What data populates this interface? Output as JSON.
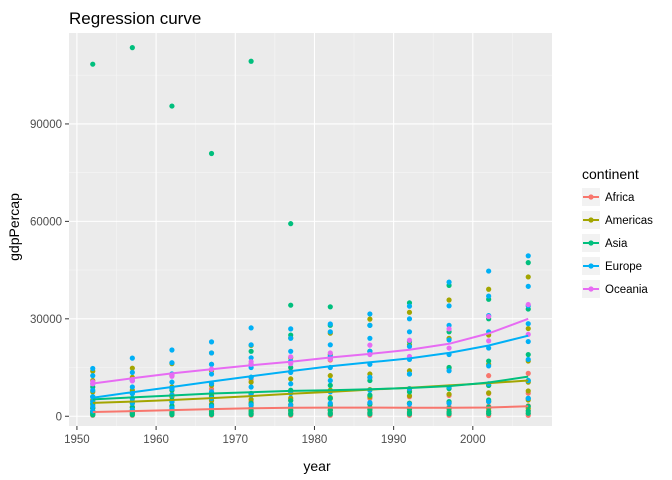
{
  "chart_data": {
    "type": "scatter",
    "title": "Regression curve",
    "xlabel": "year",
    "ylabel": "gdpPercap",
    "xlim": [
      1949,
      2010
    ],
    "ylim": [
      -3000,
      118000
    ],
    "xticks": [
      1950,
      1960,
      1970,
      1980,
      1990,
      2000
    ],
    "xtick_labels": [
      "1950",
      "1960",
      "1970",
      "1980",
      "1990",
      "2000"
    ],
    "yticks": [
      0,
      30000,
      60000,
      90000
    ],
    "ytick_labels": [
      "0",
      "30000",
      "60000",
      "90000"
    ],
    "grid": true,
    "legend": {
      "title": "continent",
      "placement": "right"
    },
    "years": [
      1952,
      1957,
      1962,
      1967,
      1972,
      1977,
      1982,
      1987,
      1992,
      1997,
      2002,
      2007
    ],
    "series": [
      {
        "name": "Africa",
        "color": "#F8766D",
        "points": [
          {
            "x": 1952,
            "y": [
              300,
              600,
              1000,
              1500,
              2500,
              4700
            ]
          },
          {
            "x": 1957,
            "y": [
              300,
              700,
              1100,
              1800,
              2900,
              5500
            ]
          },
          {
            "x": 1962,
            "y": [
              350,
              800,
              1200,
              2000,
              3200,
              6700
            ]
          },
          {
            "x": 1967,
            "y": [
              350,
              850,
              1400,
              2300,
              3800,
              8400
            ]
          },
          {
            "x": 1972,
            "y": [
              330,
              900,
              1500,
              2500,
              4500,
              11300
            ]
          },
          {
            "x": 1977,
            "y": [
              300,
              900,
              1600,
              2700,
              5000,
              13900
            ]
          },
          {
            "x": 1982,
            "y": [
              300,
              900,
              1700,
              2900,
              5400,
              17300
            ]
          },
          {
            "x": 1987,
            "y": [
              300,
              850,
              1600,
              2800,
              5500,
              11900
            ]
          },
          {
            "x": 1992,
            "y": [
              280,
              800,
              1500,
              2700,
              6000,
              7900
            ]
          },
          {
            "x": 1997,
            "y": [
              310,
              850,
              1600,
              2900,
              6400,
              14700
            ]
          },
          {
            "x": 2002,
            "y": [
              240,
              880,
              1700,
              3100,
              7000,
              12500
            ]
          },
          {
            "x": 2007,
            "y": [
              280,
              900,
              1800,
              3200,
              7100,
              13200
            ]
          }
        ],
        "fit": [
          1300,
          1600,
          1900,
          2200,
          2450,
          2600,
          2650,
          2650,
          2600,
          2600,
          2700,
          3100
        ]
      },
      {
        "name": "Americas",
        "color": "#A3A500",
        "points": [
          {
            "x": 1952,
            "y": [
              1400,
              2500,
              3500,
              5000,
              7500,
              11000,
              13900
            ]
          },
          {
            "x": 1957,
            "y": [
              1500,
              2700,
              4000,
              5500,
              8000,
              12000,
              14800
            ]
          },
          {
            "x": 1962,
            "y": [
              1700,
              3000,
              4400,
              6000,
              9000,
              12500,
              16200
            ]
          },
          {
            "x": 1967,
            "y": [
              1800,
              3200,
              4800,
              6500,
              9500,
              14000,
              19500
            ]
          },
          {
            "x": 1972,
            "y": [
              1900,
              3400,
              5200,
              7000,
              10500,
              16000,
              21800
            ]
          },
          {
            "x": 1977,
            "y": [
              2000,
              3600,
              5600,
              7500,
              11500,
              18000,
              24100
            ]
          },
          {
            "x": 1982,
            "y": [
              2000,
              3700,
              5800,
              8000,
              12500,
              19000,
              25600
            ]
          },
          {
            "x": 1987,
            "y": [
              2100,
              3800,
              6000,
              8200,
              13000,
              20000,
              29900
            ]
          },
          {
            "x": 1992,
            "y": [
              2200,
              4000,
              6300,
              8500,
              14000,
              22000,
              32000
            ]
          },
          {
            "x": 1997,
            "y": [
              2300,
              4200,
              6800,
              9000,
              15000,
              24000,
              35800
            ]
          },
          {
            "x": 2002,
            "y": [
              2400,
              4500,
              7200,
              9500,
              16000,
              25000,
              39100
            ]
          },
          {
            "x": 2007,
            "y": [
              2500,
              5000,
              7800,
              10500,
              17000,
              27000,
              42900
            ]
          }
        ],
        "fit": [
          4100,
          4500,
          5000,
          5600,
          6200,
          6900,
          7500,
          8200,
          8800,
          9500,
          10200,
          11000
        ]
      },
      {
        "name": "Asia",
        "color": "#00BF7D",
        "points": [
          {
            "x": 1952,
            "y": [
              400,
              700,
              1000,
              1500,
              2500,
              4000,
              6000,
              9000,
              108400
            ]
          },
          {
            "x": 1957,
            "y": [
              450,
              750,
              1100,
              1700,
              2800,
              4500,
              7000,
              11000,
              113500
            ]
          },
          {
            "x": 1962,
            "y": [
              500,
              800,
              1200,
              1900,
              3200,
              5000,
              8000,
              13000,
              95500
            ]
          },
          {
            "x": 1967,
            "y": [
              550,
              850,
              1400,
              2200,
              3500,
              6000,
              10000,
              16000,
              80900
            ]
          },
          {
            "x": 1972,
            "y": [
              580,
              900,
              1500,
              2500,
              4000,
              7000,
              12000,
              20000,
              109300
            ]
          },
          {
            "x": 1977,
            "y": [
              600,
              950,
              1700,
              2900,
              4800,
              8000,
              15000,
              25000,
              34200,
              59300
            ]
          },
          {
            "x": 1982,
            "y": [
              650,
              1000,
              1900,
              3300,
              5500,
              9500,
              18000,
              28000,
              33700
            ]
          },
          {
            "x": 1987,
            "y": [
              700,
              1100,
              2100,
              3700,
              6500,
              11000,
              20000,
              28000
            ]
          },
          {
            "x": 1992,
            "y": [
              700,
              1200,
              2300,
              4000,
              7500,
              13000,
              23000,
              34900
            ]
          },
          {
            "x": 1997,
            "y": [
              750,
              1300,
              2500,
              4500,
              8500,
              15000,
              26000,
              40300
            ]
          },
          {
            "x": 2002,
            "y": [
              800,
              1400,
              2800,
              5000,
              9500,
              17000,
              30000,
              36000
            ]
          },
          {
            "x": 2007,
            "y": [
              900,
              1600,
              3100,
              5500,
              11000,
              19000,
              33000,
              47300
            ]
          }
        ],
        "fit": [
          5200,
          5800,
          6400,
          7000,
          7400,
          7800,
          8000,
          8300,
          8700,
          9300,
          10400,
          12200
        ]
      },
      {
        "name": "Europe",
        "color": "#00B0F6",
        "points": [
          {
            "x": 1952,
            "y": [
              1600,
              3000,
              4500,
              6000,
              8000,
              10000,
              12500,
              14700
            ]
          },
          {
            "x": 1957,
            "y": [
              2000,
              4000,
              5500,
              7000,
              9000,
              11000,
              13500,
              17900
            ]
          },
          {
            "x": 1962,
            "y": [
              2500,
              4500,
              6500,
              8500,
              10500,
              13000,
              16500,
              20400
            ]
          },
          {
            "x": 1967,
            "y": [
              3000,
              5500,
              7500,
              10000,
              13000,
              16000,
              19500,
              22900
            ]
          },
          {
            "x": 1972,
            "y": [
              3500,
              6500,
              9000,
              12000,
              15000,
              18000,
              22000,
              27200
            ]
          },
          {
            "x": 1977,
            "y": [
              3500,
              7000,
              10000,
              13500,
              17000,
              20000,
              24000,
              26900
            ]
          },
          {
            "x": 1982,
            "y": [
              4000,
              7500,
              11000,
              15000,
              18500,
              22000,
              26000,
              28400
            ]
          },
          {
            "x": 1987,
            "y": [
              4200,
              8000,
              12000,
              16000,
              20000,
              24000,
              28000,
              31500
            ]
          },
          {
            "x": 1992,
            "y": [
              3800,
              8500,
              13000,
              17500,
              21500,
              26000,
              30000,
              33900
            ]
          },
          {
            "x": 1997,
            "y": [
              4000,
              9000,
              14000,
              19000,
              23500,
              28000,
              34000,
              41300
            ]
          },
          {
            "x": 2002,
            "y": [
              4500,
              10000,
              15500,
              21000,
              26000,
              31000,
              37000,
              44700
            ]
          },
          {
            "x": 2007,
            "y": [
              5500,
              11000,
              17500,
              23000,
              28500,
              34000,
              40000,
              49400
            ]
          }
        ],
        "fit": [
          5700,
          7400,
          9000,
          10700,
          12300,
          13900,
          15400,
          16600,
          17800,
          19500,
          21800,
          24800
        ]
      },
      {
        "name": "Oceania",
        "color": "#E76BF3",
        "points": [
          {
            "x": 1952,
            "y": [
              10000,
              10600
            ]
          },
          {
            "x": 1957,
            "y": [
              10900,
              11300
            ]
          },
          {
            "x": 1962,
            "y": [
              12300,
              12700
            ]
          },
          {
            "x": 1967,
            "y": [
              14500,
              14500
            ]
          },
          {
            "x": 1972,
            "y": [
              16000,
              16800
            ]
          },
          {
            "x": 1977,
            "y": [
              16200,
              18300
            ]
          },
          {
            "x": 1982,
            "y": [
              17600,
              19500
            ]
          },
          {
            "x": 1987,
            "y": [
              19000,
              21900
            ]
          },
          {
            "x": 1992,
            "y": [
              18400,
              23400
            ]
          },
          {
            "x": 1997,
            "y": [
              21000,
              26900
            ]
          },
          {
            "x": 2002,
            "y": [
              23200,
              30700
            ]
          },
          {
            "x": 2007,
            "y": [
              25200,
              34400
            ]
          }
        ],
        "fit": [
          10100,
          11700,
          13200,
          14500,
          15700,
          16800,
          18100,
          19200,
          20500,
          22300,
          25500,
          30000
        ]
      }
    ]
  }
}
